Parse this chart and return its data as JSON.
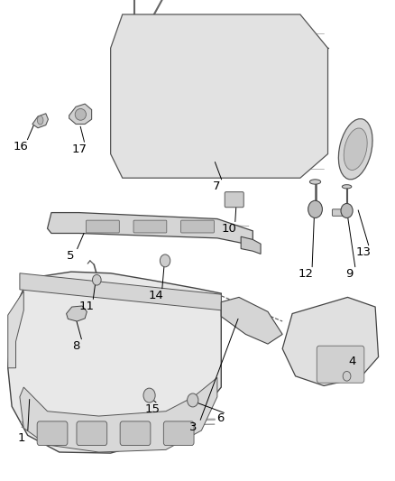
{
  "bg_color": "#ffffff",
  "fig_width": 4.38,
  "fig_height": 5.33,
  "dpi": 100,
  "font_size": 9.5,
  "font_color": "#000000",
  "line_color": "#000000",
  "line_width": 0.7
}
